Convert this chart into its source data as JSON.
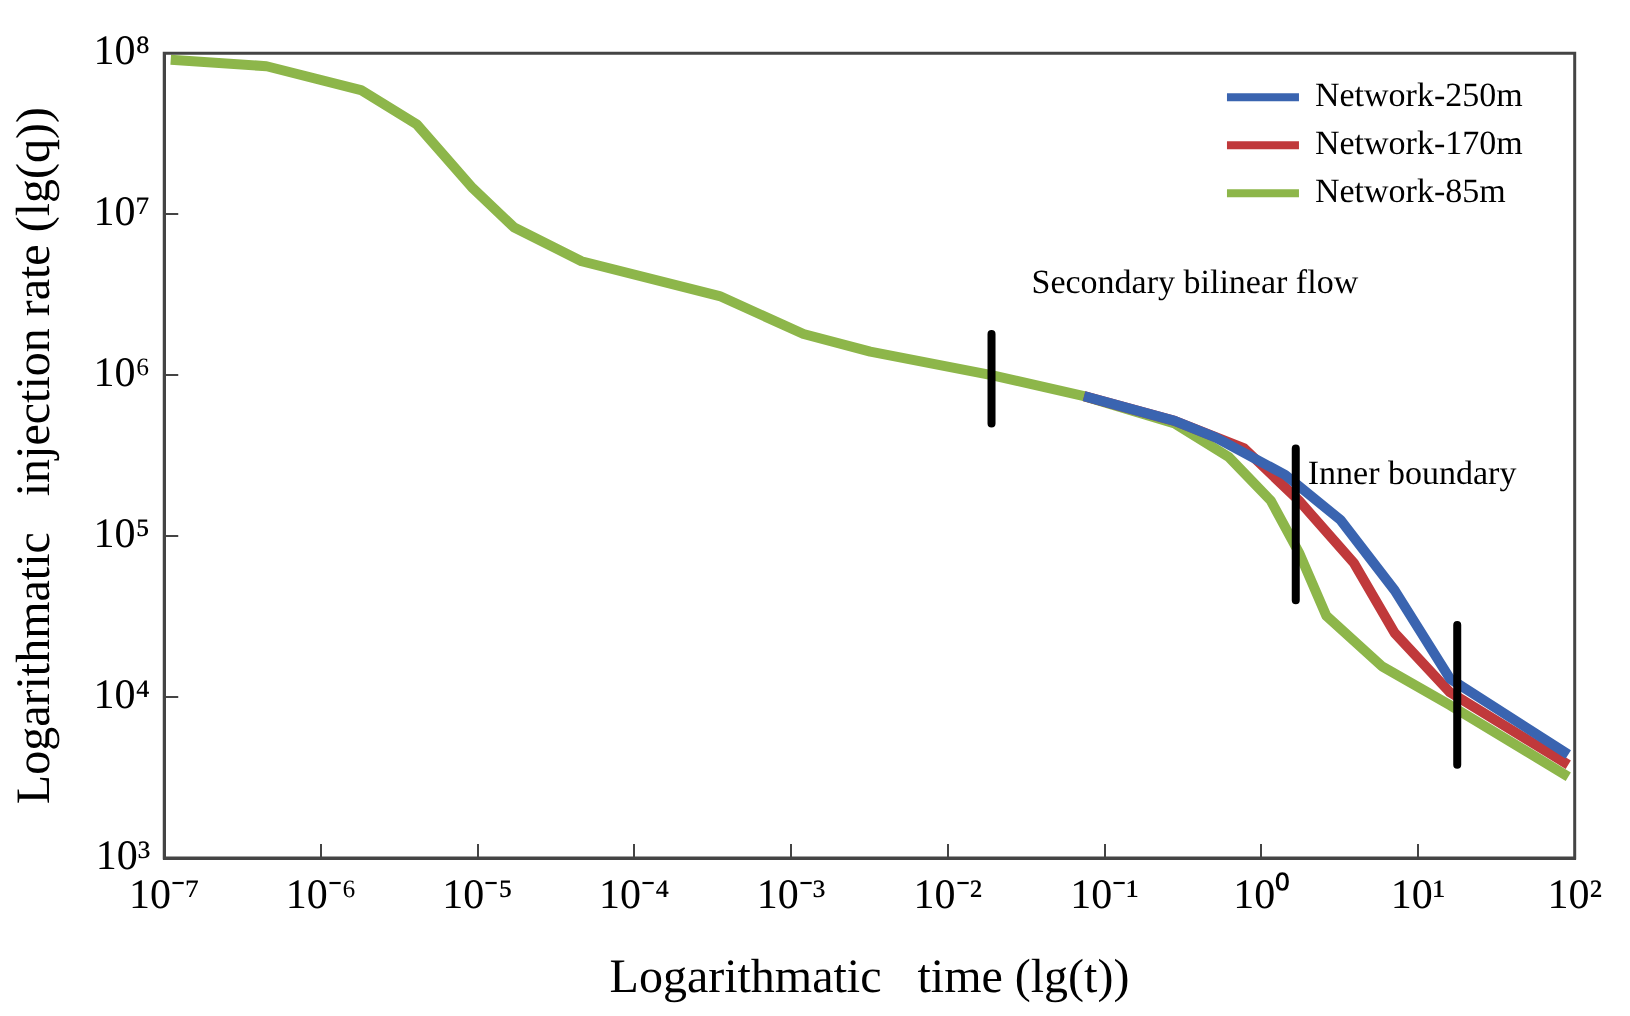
{
  "chart_data": {
    "type": "line",
    "xlabel": "Logarithmatic   time (lg(t))",
    "ylabel": "Logarithmatic   injection rate (lg(q))",
    "log": "xy",
    "grid": false,
    "legend": "top right",
    "marker": "none",
    "line_style": "solid",
    "xlim": [
      1e-07,
      100
    ],
    "ylim": [
      1000,
      100000000
    ],
    "xticks": [
      {
        "value": 1e-07,
        "label": "10⁻⁷"
      },
      {
        "value": 1e-06,
        "label": "10⁻⁶"
      },
      {
        "value": 1e-05,
        "label": "10⁻⁵"
      },
      {
        "value": 0.0001,
        "label": "10⁻⁴"
      },
      {
        "value": 0.001,
        "label": "10⁻³"
      },
      {
        "value": 0.01,
        "label": "10⁻²"
      },
      {
        "value": 0.1,
        "label": "10⁻¹"
      },
      {
        "value": 1,
        "label": "10⁰"
      },
      {
        "value": 10,
        "label": "10¹"
      },
      {
        "value": 100,
        "label": "10²"
      }
    ],
    "yticks": [
      {
        "value": 1000,
        "label": "10³"
      },
      {
        "value": 10000,
        "label": "10⁴"
      },
      {
        "value": 100000,
        "label": "10⁵"
      },
      {
        "value": 1000000,
        "label": "10⁶"
      },
      {
        "value": 10000000,
        "label": "10⁷"
      },
      {
        "value": 100000000,
        "label": "10⁸"
      }
    ],
    "annotations": [
      {
        "text": "Secondary bilinear flow",
        "x": 0.019,
        "y": 1800000
      },
      {
        "text": "Inner boundary",
        "x": 1.66,
        "y": 240000
      }
    ],
    "series": [
      {
        "name": "Network-250m",
        "color": "#3a64b0",
        "x": [
          0.074,
          0.28,
          0.51,
          1.42,
          3.2,
          7.1,
          16,
          91
        ],
        "values": [
          740000,
          520000,
          410000,
          240000,
          126000,
          46000,
          13000,
          4400
        ]
      },
      {
        "name": "Network-170m",
        "color": "#c0393b",
        "x": [
          0.074,
          0.28,
          0.78,
          1.74,
          3.9,
          7.1,
          16,
          91
        ],
        "values": [
          740000,
          520000,
          350000,
          166000,
          68000,
          25000,
          10700,
          3800
        ]
      },
      {
        "name": "Network-85m",
        "color": "#8db64a",
        "x": [
          1.1e-07,
          4.5e-07,
          1.8e-06,
          4.1e-06,
          9.3e-06,
          1.7e-05,
          4.6e-05,
          0.00035,
          0.0012,
          0.0032,
          0.019,
          0.074,
          0.28,
          0.62,
          1.15,
          1.74,
          2.6,
          5.9,
          16,
          91
        ],
        "values": [
          91000000,
          83000000,
          59000000,
          36000000,
          14500000,
          8300000,
          5100000,
          3100000,
          1800000,
          1400000,
          1000000,
          740000,
          500000,
          310000,
          166000,
          79000,
          32000,
          15500,
          8900,
          3200
        ]
      },
      {
        "color": "#000000",
        "x": [
          0.019,
          0.019
        ],
        "values": [
          1800000,
          500000
        ]
      },
      {
        "color": "#000000",
        "x": [
          1.66,
          1.66
        ],
        "values": [
          350000,
          40000
        ]
      },
      {
        "color": "#000000",
        "x": [
          17.8,
          17.8
        ],
        "values": [
          28000,
          3800
        ]
      }
    ]
  }
}
